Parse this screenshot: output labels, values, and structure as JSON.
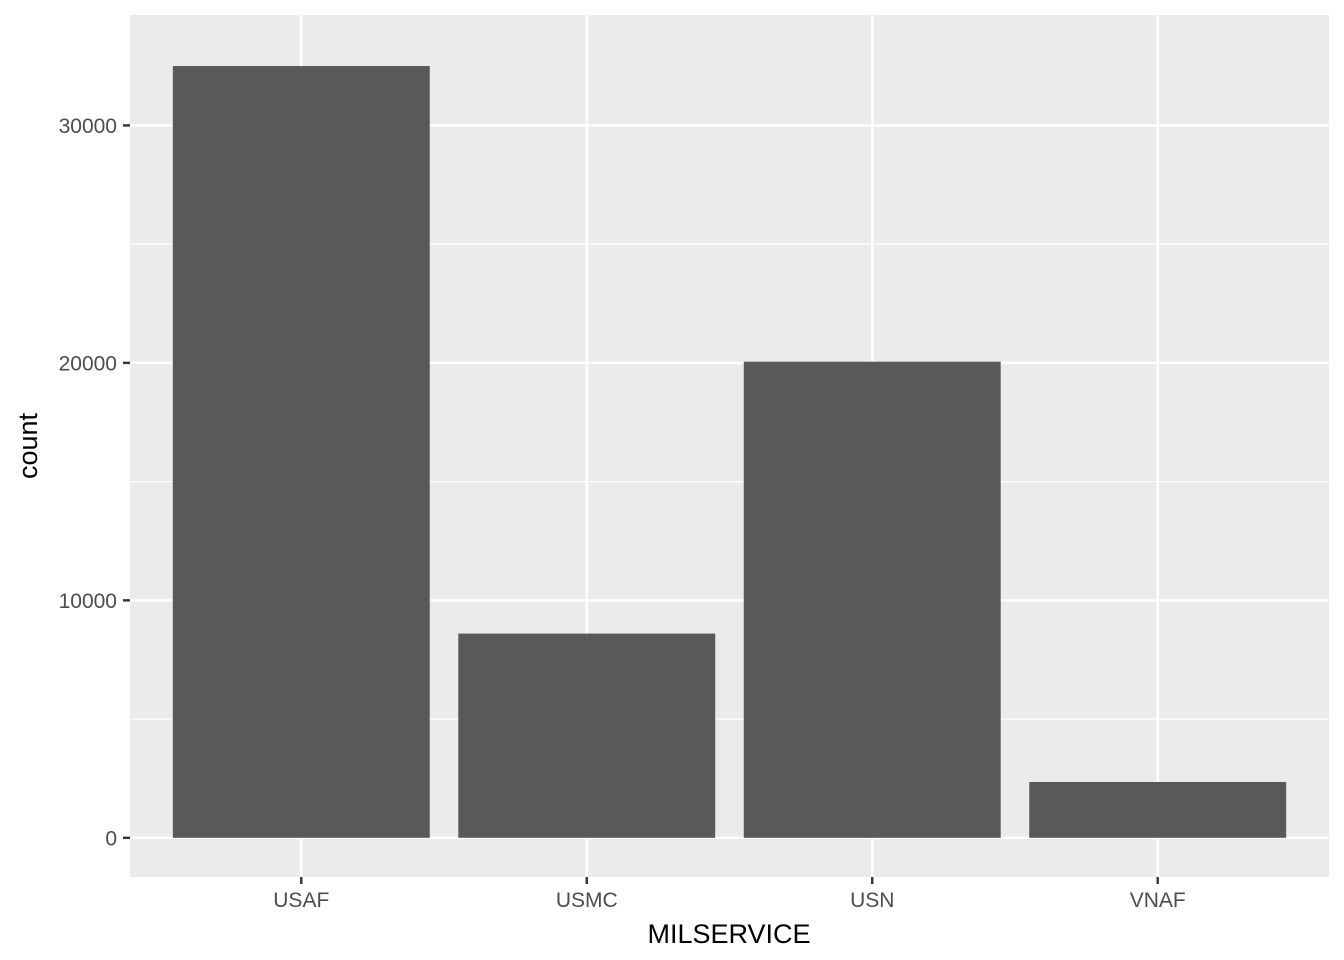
{
  "chart_data": {
    "type": "bar",
    "title": "",
    "xlabel": "MILSERVICE",
    "ylabel": "count",
    "categories": [
      "USAF",
      "USMC",
      "USN",
      "VNAF"
    ],
    "values": [
      32500,
      8600,
      20050,
      2350
    ],
    "ylim": [
      -1650,
      34650
    ],
    "yticks": [
      0,
      10000,
      20000,
      30000
    ],
    "ytick_labels": [
      "0",
      "10000",
      "20000",
      "30000"
    ],
    "y_minor_ticks": [
      5000,
      15000,
      25000
    ],
    "grid": true,
    "legend": "none",
    "colors": {
      "panel": "#ebebeb",
      "grid": "#ffffff",
      "bar": "#595959",
      "tick": "#333333"
    }
  }
}
